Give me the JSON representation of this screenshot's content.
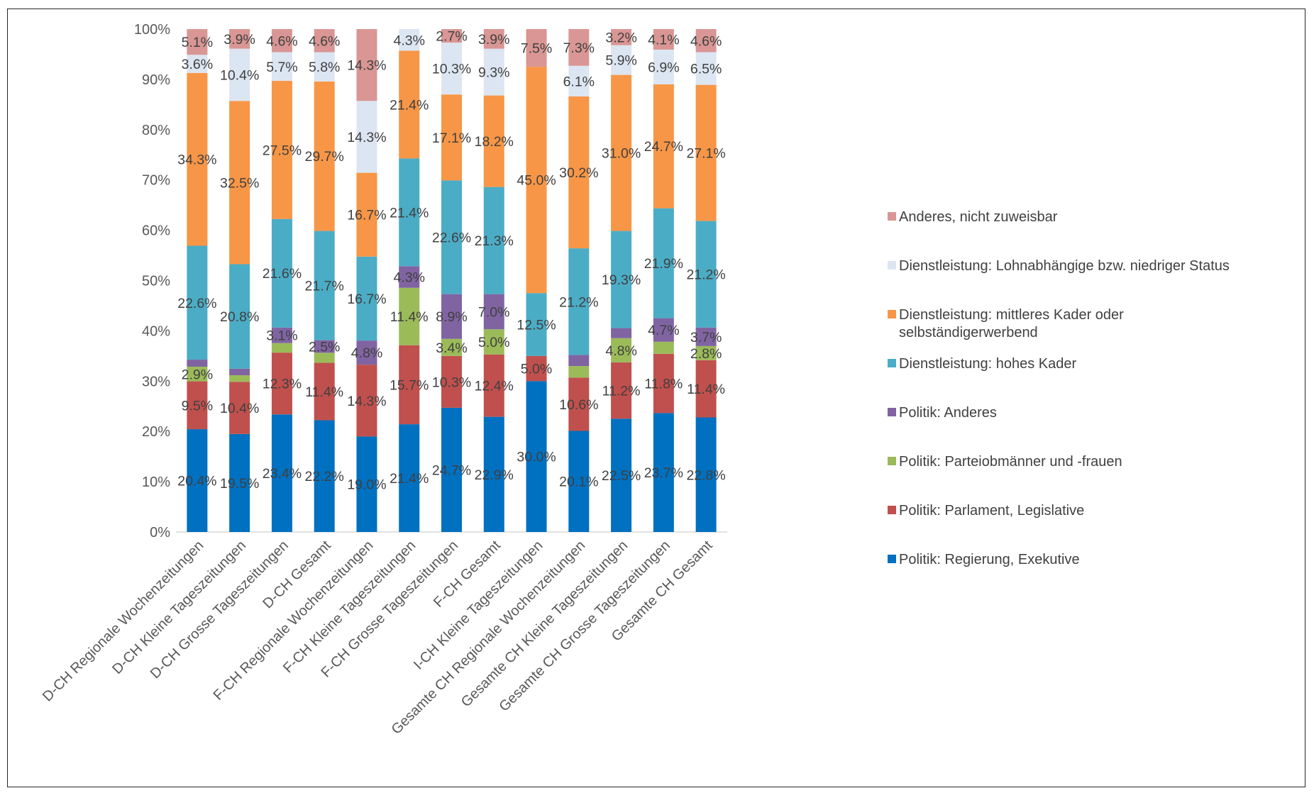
{
  "chart_data": {
    "type": "bar",
    "stacked": "percent",
    "categories": [
      "D-CH Regionale Wochenzeitungen",
      "D-CH Kleine Tageszeitungen",
      "D-CH Grosse Tageszeitungen",
      "D-CH Gesamt",
      "F-CH Regionale Wochenzeitungen",
      "F-CH Kleine Tageszeitungen",
      "F-CH Grosse Tageszeitungen",
      "F-CH Gesamt",
      "I-CH Kleine Tageszeitungen",
      "Gesamte CH Regionale Wochenzeitungen",
      "Gesamte CH Kleine Tageszeitungen",
      "Gesamte CH Grosse Tageszeitungen",
      "Gesamte CH Gesamt"
    ],
    "series": [
      {
        "name": "Politik: Regierung, Exekutive",
        "color": "#0070c0",
        "values": [
          20.4,
          19.5,
          23.4,
          22.2,
          19.0,
          21.4,
          24.7,
          22.9,
          30.0,
          20.1,
          22.5,
          23.7,
          22.8
        ],
        "labels": [
          "20.4%",
          "19.5%",
          "23.4%",
          "22.2%",
          "19.0%",
          "21.4%",
          "24.7%",
          "22.9%",
          "30.0%",
          "20.1%",
          "22.5%",
          "23.7%",
          "22.8%"
        ]
      },
      {
        "name": "Politik: Parlament, Legislative",
        "color": "#c0504d",
        "values": [
          9.5,
          10.4,
          12.3,
          11.4,
          14.3,
          15.7,
          10.3,
          12.4,
          5.0,
          10.6,
          11.2,
          11.8,
          11.4
        ],
        "labels": [
          "9.5%",
          "10.4%",
          "12.3%",
          "11.4%",
          "14.3%",
          "15.7%",
          "10.3%",
          "12.4%",
          "5.0%",
          "10.6%",
          "11.2%",
          "11.8%",
          "11.4%"
        ]
      },
      {
        "name": "Politik: Parteiobmänner und -frauen",
        "color": "#9bbb59",
        "values": [
          2.9,
          1.3,
          1.9,
          2.0,
          0.0,
          11.4,
          3.4,
          5.0,
          0.0,
          2.3,
          4.8,
          2.4,
          2.8
        ],
        "labels": [
          "2.9%",
          "",
          "",
          "",
          "",
          "11.4%",
          "3.4%",
          "5.0%",
          "",
          "",
          "4.8%",
          "",
          "2.8%"
        ]
      },
      {
        "name": "Politik: Anderes",
        "color": "#8064a2",
        "values": [
          1.4,
          1.3,
          3.1,
          2.5,
          4.8,
          4.3,
          8.9,
          7.0,
          0.0,
          2.2,
          2.0,
          4.7,
          3.7
        ],
        "labels": [
          "",
          "",
          "3.1%",
          "2.5%",
          "4.8%",
          "4.3%",
          "8.9%",
          "7.0%",
          "",
          "",
          "",
          "4.7%",
          "3.7%"
        ]
      },
      {
        "name": "Dienstleistung: hohes Kader",
        "color": "#4bacc6",
        "values": [
          22.6,
          20.8,
          21.6,
          21.7,
          16.7,
          21.4,
          22.6,
          21.3,
          12.5,
          21.2,
          19.3,
          21.9,
          21.2
        ],
        "labels": [
          "22.6%",
          "20.8%",
          "21.6%",
          "21.7%",
          "16.7%",
          "21.4%",
          "22.6%",
          "21.3%",
          "12.5%",
          "21.2%",
          "19.3%",
          "21.9%",
          "21.2%"
        ]
      },
      {
        "name": "Dienstleistung: mittleres Kader oder selbständigerwerbend",
        "legend_lines": [
          "Dienstleistung: mittleres Kader oder",
          "selbständigerwerbend"
        ],
        "color": "#f79646",
        "values": [
          34.3,
          32.5,
          27.5,
          29.7,
          16.7,
          21.4,
          17.1,
          18.2,
          45.0,
          30.2,
          31.0,
          24.7,
          27.1
        ],
        "labels": [
          "34.3%",
          "32.5%",
          "27.5%",
          "29.7%",
          "16.7%",
          "21.4%",
          "17.1%",
          "18.2%",
          "45.0%",
          "30.2%",
          "31.0%",
          "24.7%",
          "27.1%"
        ]
      },
      {
        "name": "Dienstleistung: Lohnabhängige bzw. niedriger Status",
        "color": "#dce6f2",
        "values": [
          3.6,
          10.4,
          5.7,
          5.8,
          14.3,
          4.3,
          10.3,
          9.3,
          0.0,
          6.1,
          5.9,
          6.9,
          6.5
        ],
        "labels": [
          "3.6%",
          "10.4%",
          "5.7%",
          "5.8%",
          "14.3%",
          "4.3%",
          "10.3%",
          "9.3%",
          "",
          "6.1%",
          "5.9%",
          "6.9%",
          "6.5%"
        ]
      },
      {
        "name": "Anderes, nicht zuweisbar",
        "color": "#d99694",
        "values": [
          5.1,
          3.9,
          4.6,
          4.6,
          14.3,
          0.0,
          2.7,
          3.9,
          7.5,
          7.3,
          3.2,
          4.1,
          4.6
        ],
        "labels": [
          "5.1%",
          "3.9%",
          "4.6%",
          "4.6%",
          "14.3%",
          "",
          "2.7%",
          "3.9%",
          "7.5%",
          "7.3%",
          "3.2%",
          "4.1%",
          "4.6%"
        ]
      }
    ],
    "y_ticks": [
      "0%",
      "10%",
      "20%",
      "30%",
      "40%",
      "50%",
      "60%",
      "70%",
      "80%",
      "90%",
      "100%"
    ],
    "ylim": [
      0,
      100
    ],
    "grid": false,
    "legend_position": "right",
    "legend_order": "reverse"
  }
}
